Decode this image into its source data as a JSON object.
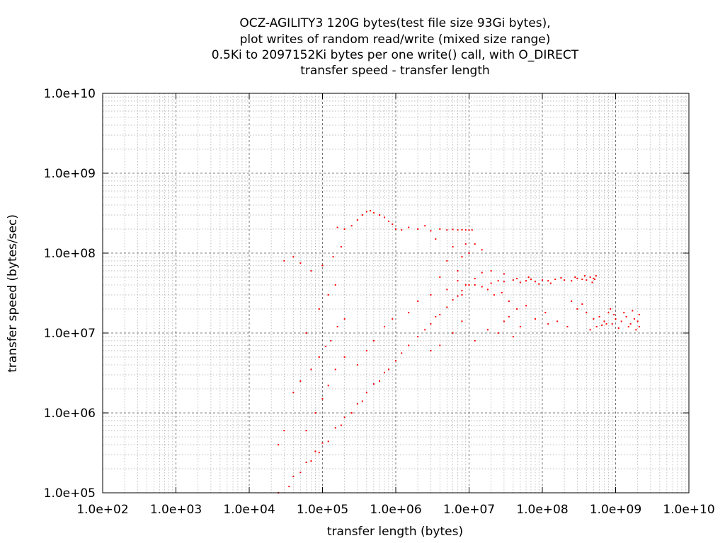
{
  "chart_data": {
    "type": "scatter",
    "title_lines": [
      "OCZ-AGILITY3 120G bytes(test file size 93Gi bytes),",
      "plot writes of random read/write (mixed size range)",
      "0.5Ki to 2097152Ki bytes per one write() call, with O_DIRECT",
      "transfer speed - transfer length"
    ],
    "xlabel": "transfer length (bytes)",
    "ylabel": "transfer speed (bytes/sec)",
    "x_scale": "log",
    "y_scale": "log",
    "xlim": [
      100,
      10000000000
    ],
    "ylim": [
      100000,
      10000000000
    ],
    "x_ticks": [
      {
        "value": 100,
        "label": "1.0e+02"
      },
      {
        "value": 1000,
        "label": "1.0e+03"
      },
      {
        "value": 10000,
        "label": "1.0e+04"
      },
      {
        "value": 100000,
        "label": "1.0e+05"
      },
      {
        "value": 1000000,
        "label": "1.0e+06"
      },
      {
        "value": 10000000,
        "label": "1.0e+07"
      },
      {
        "value": 100000000,
        "label": "1.0e+08"
      },
      {
        "value": 1000000000,
        "label": "1.0e+09"
      },
      {
        "value": 10000000000,
        "label": "1.0e+10"
      }
    ],
    "y_ticks": [
      {
        "value": 100000,
        "label": "1.0e+05"
      },
      {
        "value": 1000000,
        "label": "1.0e+06"
      },
      {
        "value": 10000000,
        "label": "1.0e+07"
      },
      {
        "value": 100000000,
        "label": "1.0e+08"
      },
      {
        "value": 1000000000,
        "label": "1.0e+09"
      },
      {
        "value": 10000000000,
        "label": "1.0e+10"
      }
    ],
    "grid": true,
    "series": [
      {
        "color": "#ff0000",
        "points": [
          [
            25000,
            100000
          ],
          [
            40000,
            160000
          ],
          [
            60000,
            240000
          ],
          [
            80000,
            330000
          ],
          [
            100000,
            420000
          ],
          [
            150000,
            650000
          ],
          [
            200000,
            880000
          ],
          [
            300000,
            1300000
          ],
          [
            400000,
            1800000
          ],
          [
            500000,
            2300000
          ],
          [
            700000,
            3200000
          ],
          [
            1000000,
            4500000
          ],
          [
            1500000,
            7000000
          ],
          [
            2000000,
            9000000
          ],
          [
            3000000,
            13000000
          ],
          [
            4000000,
            17000000
          ],
          [
            5000000,
            21000000
          ],
          [
            7000000,
            29000000
          ],
          [
            10000000,
            40000000
          ],
          [
            12000000,
            48000000
          ],
          [
            15000000,
            57000000
          ],
          [
            20000000,
            60000000
          ],
          [
            30000000,
            55000000
          ],
          [
            35000,
            120000
          ],
          [
            50000,
            180000
          ],
          [
            70000,
            250000
          ],
          [
            90000,
            320000
          ],
          [
            120000,
            440000
          ],
          [
            180000,
            700000
          ],
          [
            250000,
            1000000
          ],
          [
            350000,
            1400000
          ],
          [
            600000,
            2500000
          ],
          [
            800000,
            3500000
          ],
          [
            1200000,
            5600000
          ],
          [
            2500000,
            11000000
          ],
          [
            3500000,
            16000000
          ],
          [
            6000000,
            26000000
          ],
          [
            8000000,
            34000000
          ],
          [
            60000,
            600000
          ],
          [
            80000,
            1000000
          ],
          [
            100000,
            1500000
          ],
          [
            120000,
            2200000
          ],
          [
            150000,
            3500000
          ],
          [
            200000,
            5000000
          ],
          [
            300000,
            4000000
          ],
          [
            400000,
            6000000
          ],
          [
            500000,
            8000000
          ],
          [
            700000,
            12000000
          ],
          [
            900000,
            15000000
          ],
          [
            50000,
            2500000
          ],
          [
            70000,
            3500000
          ],
          [
            90000,
            5000000
          ],
          [
            110000,
            6800000
          ],
          [
            130000,
            8000000
          ],
          [
            160000,
            12000000
          ],
          [
            200000,
            15000000
          ],
          [
            90000,
            20000000
          ],
          [
            60000,
            10000000
          ],
          [
            40000,
            1800000
          ],
          [
            30000,
            600000
          ],
          [
            25000,
            400000
          ],
          [
            120000,
            30000000
          ],
          [
            150000,
            40000000
          ],
          [
            200000,
            200000000
          ],
          [
            250000,
            220000000
          ],
          [
            300000,
            260000000
          ],
          [
            350000,
            300000000
          ],
          [
            400000,
            330000000
          ],
          [
            450000,
            340000000
          ],
          [
            500000,
            320000000
          ],
          [
            600000,
            300000000
          ],
          [
            700000,
            280000000
          ],
          [
            800000,
            250000000
          ],
          [
            900000,
            230000000
          ],
          [
            180000,
            120000000
          ],
          [
            140000,
            90000000
          ],
          [
            100000,
            70000000
          ],
          [
            70000,
            60000000
          ],
          [
            50000,
            75000000
          ],
          [
            40000,
            90000000
          ],
          [
            30000,
            80000000
          ],
          [
            160000,
            210000000
          ],
          [
            1000000,
            200000000
          ],
          [
            1200000,
            195000000
          ],
          [
            1500000,
            210000000
          ],
          [
            2000000,
            200000000
          ],
          [
            2500000,
            220000000
          ],
          [
            3000000,
            190000000
          ],
          [
            4000000,
            200000000
          ],
          [
            5000000,
            195000000
          ],
          [
            6000000,
            198000000
          ],
          [
            7000000,
            195000000
          ],
          [
            8000000,
            196000000
          ],
          [
            9000000,
            195000000
          ],
          [
            10000000,
            194000000
          ],
          [
            11000000,
            195000000
          ],
          [
            3500000,
            150000000
          ],
          [
            5000000,
            80000000
          ],
          [
            6000000,
            120000000
          ],
          [
            7000000,
            60000000
          ],
          [
            8000000,
            90000000
          ],
          [
            9000000,
            130000000
          ],
          [
            10000000,
            100000000
          ],
          [
            4000000,
            50000000
          ],
          [
            3000000,
            30000000
          ],
          [
            2000000,
            25000000
          ],
          [
            1500000,
            18000000
          ],
          [
            5000000,
            35000000
          ],
          [
            7000000,
            45000000
          ],
          [
            8000000,
            30000000
          ],
          [
            9000000,
            40000000
          ],
          [
            12000000,
            40000000
          ],
          [
            15000000,
            38000000
          ],
          [
            20000000,
            42000000
          ],
          [
            25000000,
            45000000
          ],
          [
            30000000,
            44000000
          ],
          [
            40000000,
            46000000
          ],
          [
            50000000,
            43000000
          ],
          [
            60000000,
            45000000
          ],
          [
            70000000,
            47000000
          ],
          [
            80000000,
            44000000
          ],
          [
            100000000,
            46000000
          ],
          [
            120000000,
            45000000
          ],
          [
            150000000,
            47000000
          ],
          [
            200000000,
            46000000
          ],
          [
            250000000,
            45000000
          ],
          [
            300000000,
            48000000
          ],
          [
            350000000,
            47000000
          ],
          [
            400000000,
            46000000
          ],
          [
            450000000,
            50000000
          ],
          [
            500000000,
            48000000
          ],
          [
            540000000,
            52000000
          ],
          [
            520000000,
            47000000
          ],
          [
            480000000,
            43000000
          ],
          [
            380000000,
            52000000
          ],
          [
            280000000,
            50000000
          ],
          [
            180000000,
            49000000
          ],
          [
            130000000,
            42000000
          ],
          [
            90000000,
            41000000
          ],
          [
            65000000,
            50000000
          ],
          [
            45000000,
            48000000
          ],
          [
            18000000,
            35000000
          ],
          [
            22000000,
            30000000
          ],
          [
            28000000,
            32000000
          ],
          [
            35000000,
            25000000
          ],
          [
            45000000,
            20000000
          ],
          [
            60000000,
            22000000
          ],
          [
            80000000,
            15000000
          ],
          [
            110000000,
            18000000
          ],
          [
            160000000,
            14000000
          ],
          [
            220000000,
            12000000
          ],
          [
            250000000,
            25000000
          ],
          [
            300000000,
            20000000
          ],
          [
            350000000,
            23000000
          ],
          [
            400000000,
            18000000
          ],
          [
            500000000,
            15000000
          ],
          [
            550000000,
            12000000
          ],
          [
            600000000,
            16000000
          ],
          [
            700000000,
            14000000
          ],
          [
            800000000,
            18000000
          ],
          [
            900000000,
            13000000
          ],
          [
            1000000000,
            15000000
          ],
          [
            1200000000,
            14000000
          ],
          [
            1400000000,
            16000000
          ],
          [
            1600000000,
            13000000
          ],
          [
            1800000000,
            15000000
          ],
          [
            2000000000,
            14000000
          ],
          [
            2100000000,
            12000000
          ],
          [
            2100000000,
            17000000
          ],
          [
            450000000,
            11000000
          ],
          [
            650000000,
            12500000
          ],
          [
            850000000,
            20000000
          ],
          [
            1100000000,
            11500000
          ],
          [
            1300000000,
            18000000
          ],
          [
            1500000000,
            12000000
          ],
          [
            1700000000,
            19000000
          ],
          [
            1900000000,
            11000000
          ],
          [
            750000000,
            13000000
          ],
          [
            950000000,
            17000000
          ],
          [
            15000000,
            110000000
          ],
          [
            12000000,
            130000000
          ],
          [
            30000000,
            14000000
          ],
          [
            40000000,
            9000000
          ],
          [
            50000000,
            12000000
          ],
          [
            8000000,
            14000000
          ],
          [
            6000000,
            10000000
          ],
          [
            4000000,
            7000000
          ],
          [
            3000000,
            6000000
          ],
          [
            12000000,
            8000000
          ],
          [
            18000000,
            11000000
          ],
          [
            25000000,
            10000000
          ],
          [
            35000000,
            16000000
          ],
          [
            120000000,
            13000000
          ]
        ]
      }
    ]
  }
}
